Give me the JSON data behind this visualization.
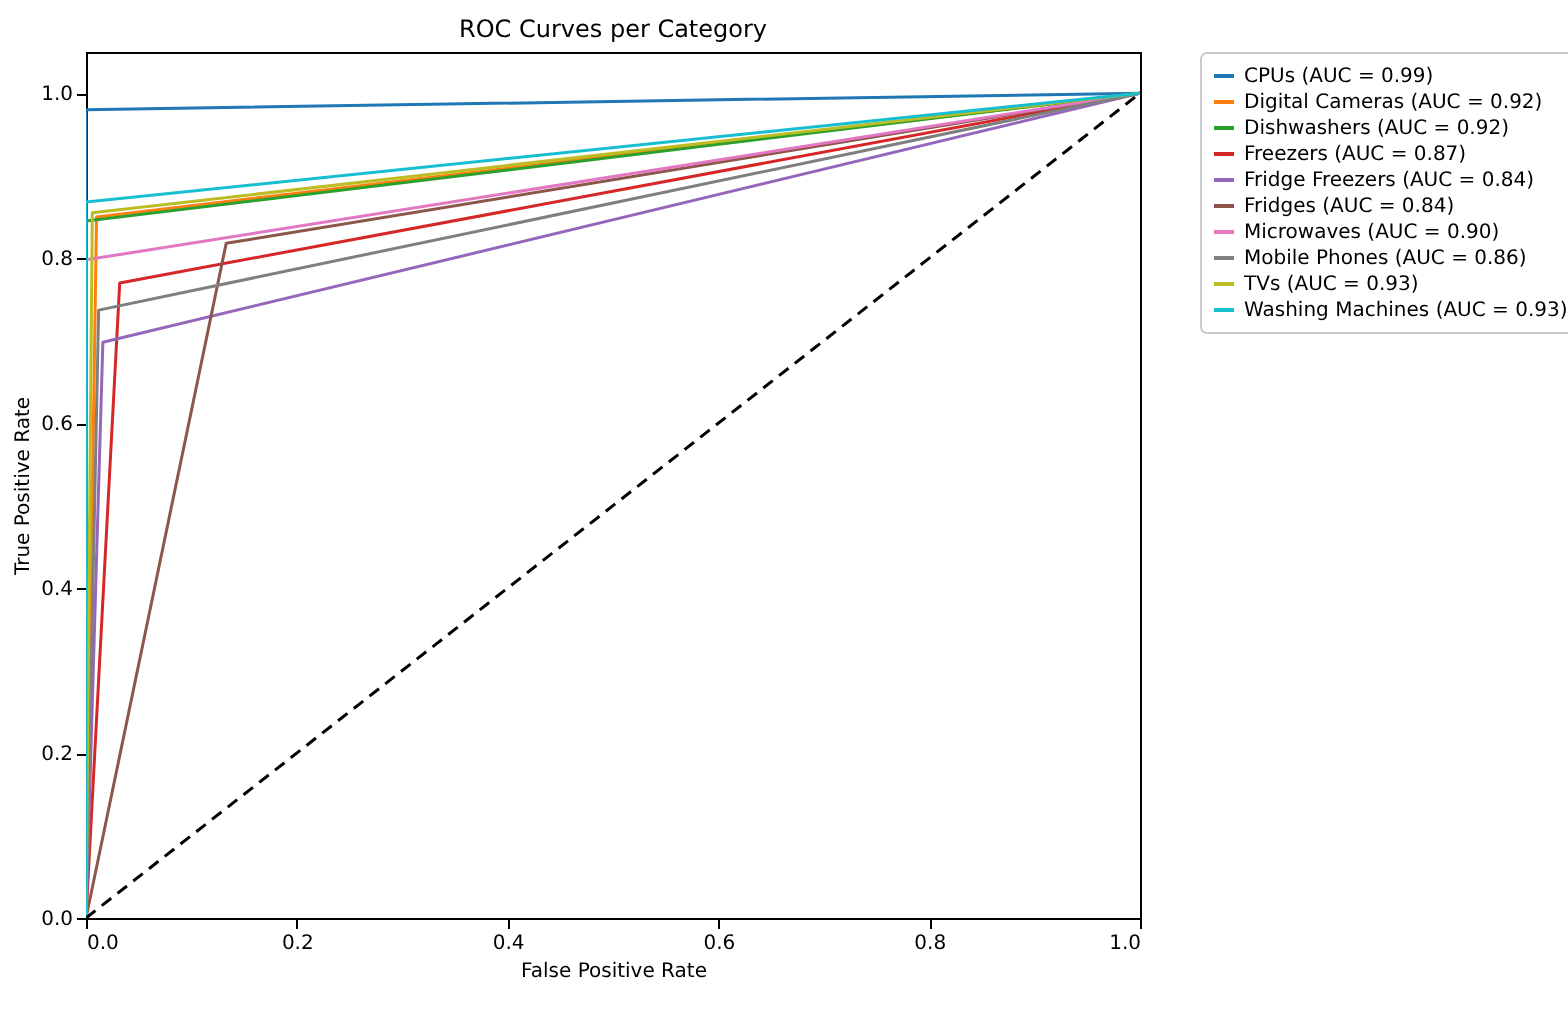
{
  "chart_data": {
    "type": "line",
    "title": "ROC Curves per Category",
    "xlabel": "False Positive Rate",
    "ylabel": "True Positive Rate",
    "xlim": [
      0,
      1.0
    ],
    "ylim": [
      0,
      1.05
    ],
    "xticks": [
      {
        "value": 0,
        "label": "0.0"
      },
      {
        "value": 0.2,
        "label": "0.2"
      },
      {
        "value": 0.4,
        "label": "0.4"
      },
      {
        "value": 0.6,
        "label": "0.6"
      },
      {
        "value": 0.8,
        "label": "0.8"
      },
      {
        "value": 1,
        "label": "1.0"
      }
    ],
    "yticks": [
      {
        "value": 0,
        "label": "0.0"
      },
      {
        "value": 0.2,
        "label": "0.2"
      },
      {
        "value": 0.4,
        "label": "0.4"
      },
      {
        "value": 0.6,
        "label": "0.6"
      },
      {
        "value": 0.8,
        "label": "0.8"
      },
      {
        "value": 1,
        "label": "1.0"
      }
    ],
    "grid": false,
    "legend": "top right",
    "marker": "none",
    "line_style": "solid",
    "series": [
      {
        "name": "CPUs (AUC = 0.99)",
        "color": "#1f77b4",
        "x": [
          0,
          0,
          1
        ],
        "values": [
          0,
          0.98,
          1
        ]
      },
      {
        "name": "Digital Cameras (AUC = 0.92)",
        "color": "#ff7f0e",
        "x": [
          0,
          0.01,
          1
        ],
        "values": [
          0,
          0.85,
          1
        ]
      },
      {
        "name": "Dishwashers (AUC = 0.92)",
        "color": "#2ca02c",
        "x": [
          0,
          0,
          1
        ],
        "values": [
          0,
          0.845,
          1
        ]
      },
      {
        "name": "Freezers (AUC = 0.87)",
        "color": "#d62728",
        "x": [
          0,
          0.032,
          1
        ],
        "values": [
          0,
          0.77,
          1
        ]
      },
      {
        "name": "Fridge Freezers (AUC = 0.84)",
        "color": "#9467bd",
        "x": [
          0,
          0.016,
          1
        ],
        "values": [
          0,
          0.698,
          1
        ]
      },
      {
        "name": "Fridges (AUC = 0.84)",
        "color": "#8c564b",
        "x": [
          0,
          0.133,
          1
        ],
        "values": [
          0,
          0.818,
          1
        ]
      },
      {
        "name": "Microwaves (AUC = 0.90)",
        "color": "#e377c2",
        "x": [
          0,
          0,
          1
        ],
        "values": [
          0,
          0.798,
          1
        ]
      },
      {
        "name": "Mobile Phones (AUC = 0.86)",
        "color": "#7f7f7f",
        "x": [
          0,
          0.012,
          1
        ],
        "values": [
          0,
          0.737,
          1
        ]
      },
      {
        "name": "TVs (AUC = 0.93)",
        "color": "#bcbd22",
        "x": [
          0,
          0.006,
          1
        ],
        "values": [
          0,
          0.855,
          1
        ]
      },
      {
        "name": "Washing Machines (AUC = 0.93)",
        "color": "#17becf",
        "x": [
          0,
          0,
          1
        ],
        "values": [
          0,
          0.868,
          1
        ]
      },
      {
        "color": "#000000",
        "x": [
          0,
          1
        ],
        "values": [
          0,
          1
        ],
        "line_style": "dashed"
      }
    ]
  }
}
